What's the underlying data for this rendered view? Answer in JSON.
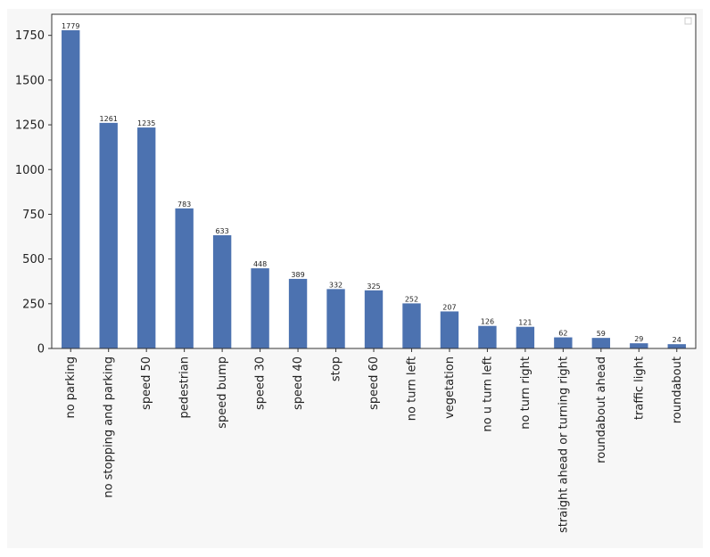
{
  "chart_data": {
    "type": "bar",
    "categories": [
      "no parking",
      "no stopping and parking",
      "speed 50",
      "pedestrian",
      "speed bump",
      "speed 30",
      "speed 40",
      "stop",
      "speed 60",
      "no turn left",
      "vegetation",
      "no u turn left",
      "no turn right",
      "straight ahead or turning right",
      "roundabout ahead",
      "traffic light",
      "roundabout"
    ],
    "values": [
      1779,
      1261,
      1235,
      783,
      633,
      448,
      389,
      332,
      325,
      252,
      207,
      126,
      121,
      62,
      59,
      29,
      24
    ],
    "value_labels": [
      "1779",
      "1261",
      "1235",
      "783",
      "633",
      "448",
      "389",
      "332",
      "325",
      "252",
      "207",
      "126",
      "121",
      "62",
      "59",
      "29",
      "24"
    ],
    "yticks": [
      0,
      250,
      500,
      750,
      1000,
      1250,
      1500,
      1750
    ],
    "ytick_labels": [
      "0",
      "250",
      "500",
      "750",
      "1000",
      "1250",
      "1500",
      "1750"
    ],
    "ylim": [
      0,
      1868
    ],
    "title": "",
    "xlabel": "",
    "ylabel": "",
    "grid": false,
    "legend": "top-right (empty)",
    "bar_color": "#4c72b0"
  }
}
